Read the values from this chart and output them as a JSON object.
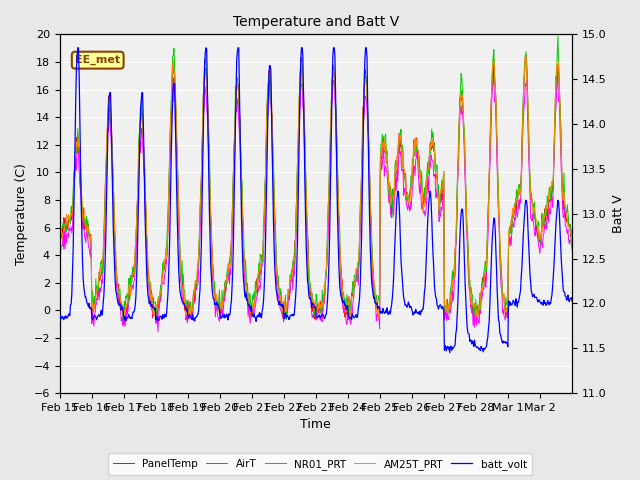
{
  "title": "Temperature and Batt V",
  "xlabel": "Time",
  "ylabel_left": "Temperature (C)",
  "ylabel_right": "Batt V",
  "annotation": "EE_met",
  "ylim_left": [
    -6,
    20
  ],
  "ylim_right": [
    11.0,
    15.0
  ],
  "yticks_left": [
    -6,
    -4,
    -2,
    0,
    2,
    4,
    6,
    8,
    10,
    12,
    14,
    16,
    18,
    20
  ],
  "yticks_right": [
    11.0,
    11.5,
    12.0,
    12.5,
    13.0,
    13.5,
    14.0,
    14.5,
    15.0
  ],
  "xtick_labels": [
    "Feb 15",
    "Feb 16",
    "Feb 17",
    "Feb 18",
    "Feb 19",
    "Feb 20",
    "Feb 21",
    "Feb 22",
    "Feb 23",
    "Feb 24",
    "Feb 25",
    "Feb 26",
    "Feb 27",
    "Feb 28",
    "Mar 1",
    "Mar 2"
  ],
  "series_colors": {
    "PanelTemp": "#FF0000",
    "AirT": "#FF00FF",
    "NR01_PRT": "#00CC00",
    "AM25T_PRT": "#FF8800",
    "batt_volt": "#0000FF"
  },
  "legend_labels": [
    "PanelTemp",
    "AirT",
    "NR01_PRT",
    "AM25T_PRT",
    "batt_volt"
  ],
  "figsize": [
    6.4,
    4.8
  ],
  "dpi": 100,
  "background_color": "#E8E8E8",
  "plot_bg_color": "#F0F0F0",
  "grid_color": "#FFFFFF",
  "annotation_bg": "#FFFF99",
  "annotation_border": "#884400",
  "annotation_text_color": "#884400"
}
